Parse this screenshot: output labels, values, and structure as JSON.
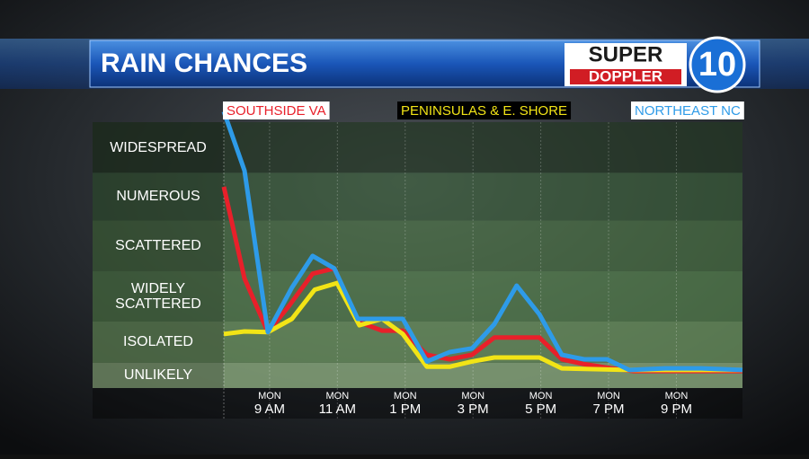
{
  "brand": {
    "line1": "SUPER",
    "line2": "DOPPLER",
    "number": "10"
  },
  "chart_data": {
    "type": "line",
    "title": "RAIN CHANCES",
    "xlim": [
      7.65,
      22.95
    ],
    "xticks": [
      {
        "value": 9,
        "label": "9 AM"
      },
      {
        "value": 11,
        "label": "11 AM"
      },
      {
        "value": 13,
        "label": "1 PM"
      },
      {
        "value": 15,
        "label": "3 PM"
      },
      {
        "value": 17,
        "label": "5 PM"
      },
      {
        "value": 19,
        "label": "7 PM"
      },
      {
        "value": 21,
        "label": "9 PM"
      }
    ],
    "xtick_days": [
      "MON",
      "MON",
      "MON",
      "MON",
      "MON",
      "MON",
      "MON"
    ],
    "ylim": [
      0,
      100
    ],
    "bands": [
      {
        "label": "UNLIKELY",
        "from": 0,
        "to": 9.5
      },
      {
        "label": "ISOLATED",
        "from": 9.5,
        "to": 25
      },
      {
        "label": "WIDELY SCATTERED",
        "from": 25,
        "to": 44
      },
      {
        "label": "SCATTERED",
        "from": 44,
        "to": 63
      },
      {
        "label": "NUMEROUS",
        "from": 63,
        "to": 81
      },
      {
        "label": "WIDESPREAD",
        "from": 81,
        "to": 100
      }
    ],
    "series": [
      {
        "name": "SOUTHSIDE VA",
        "color": "#e8202a",
        "x": [
          7.65,
          8.26,
          8.95,
          9.58,
          10.27,
          10.91,
          11.6,
          12.32,
          12.93,
          13.64,
          14.31,
          14.97,
          15.63,
          16.96,
          17.62,
          18.28,
          19.08,
          19.74,
          22.95
        ],
        "values": [
          75.7,
          41.2,
          21,
          31,
          43,
          45,
          25,
          21.6,
          21.6,
          12.5,
          10.8,
          12.5,
          19,
          19,
          10.8,
          9,
          7.4,
          6.4,
          6.4
        ]
      },
      {
        "name": "PENINSULAS & E. SHORE",
        "color": "#f2e416",
        "x": [
          7.65,
          8.26,
          8.95,
          9.66,
          10.33,
          10.99,
          11.65,
          12.32,
          12.93,
          13.64,
          14.31,
          14.97,
          15.63,
          16.96,
          17.62,
          19.61,
          22.95
        ],
        "values": [
          20.3,
          21.3,
          21,
          26,
          37,
          39.5,
          23.6,
          26,
          20.3,
          8,
          8,
          10,
          11.5,
          11.5,
          7.4,
          6.8,
          6.8
        ]
      },
      {
        "name": "NORTHEAST NC",
        "color": "#2e9be8",
        "x": [
          7.65,
          8.26,
          8.95,
          9.66,
          10.27,
          10.91,
          11.6,
          12.93,
          13.64,
          14.31,
          14.97,
          15.63,
          16.29,
          16.96,
          17.62,
          18.28,
          18.95,
          19.61,
          20.67,
          21.73,
          22.95
        ],
        "values": [
          104,
          81.8,
          21,
          37.8,
          49.7,
          45,
          26,
          26,
          10,
          13.5,
          14.9,
          24,
          38.5,
          27.7,
          12.5,
          10.8,
          10.8,
          6.8,
          7.4,
          7.4,
          6.8
        ]
      }
    ]
  }
}
